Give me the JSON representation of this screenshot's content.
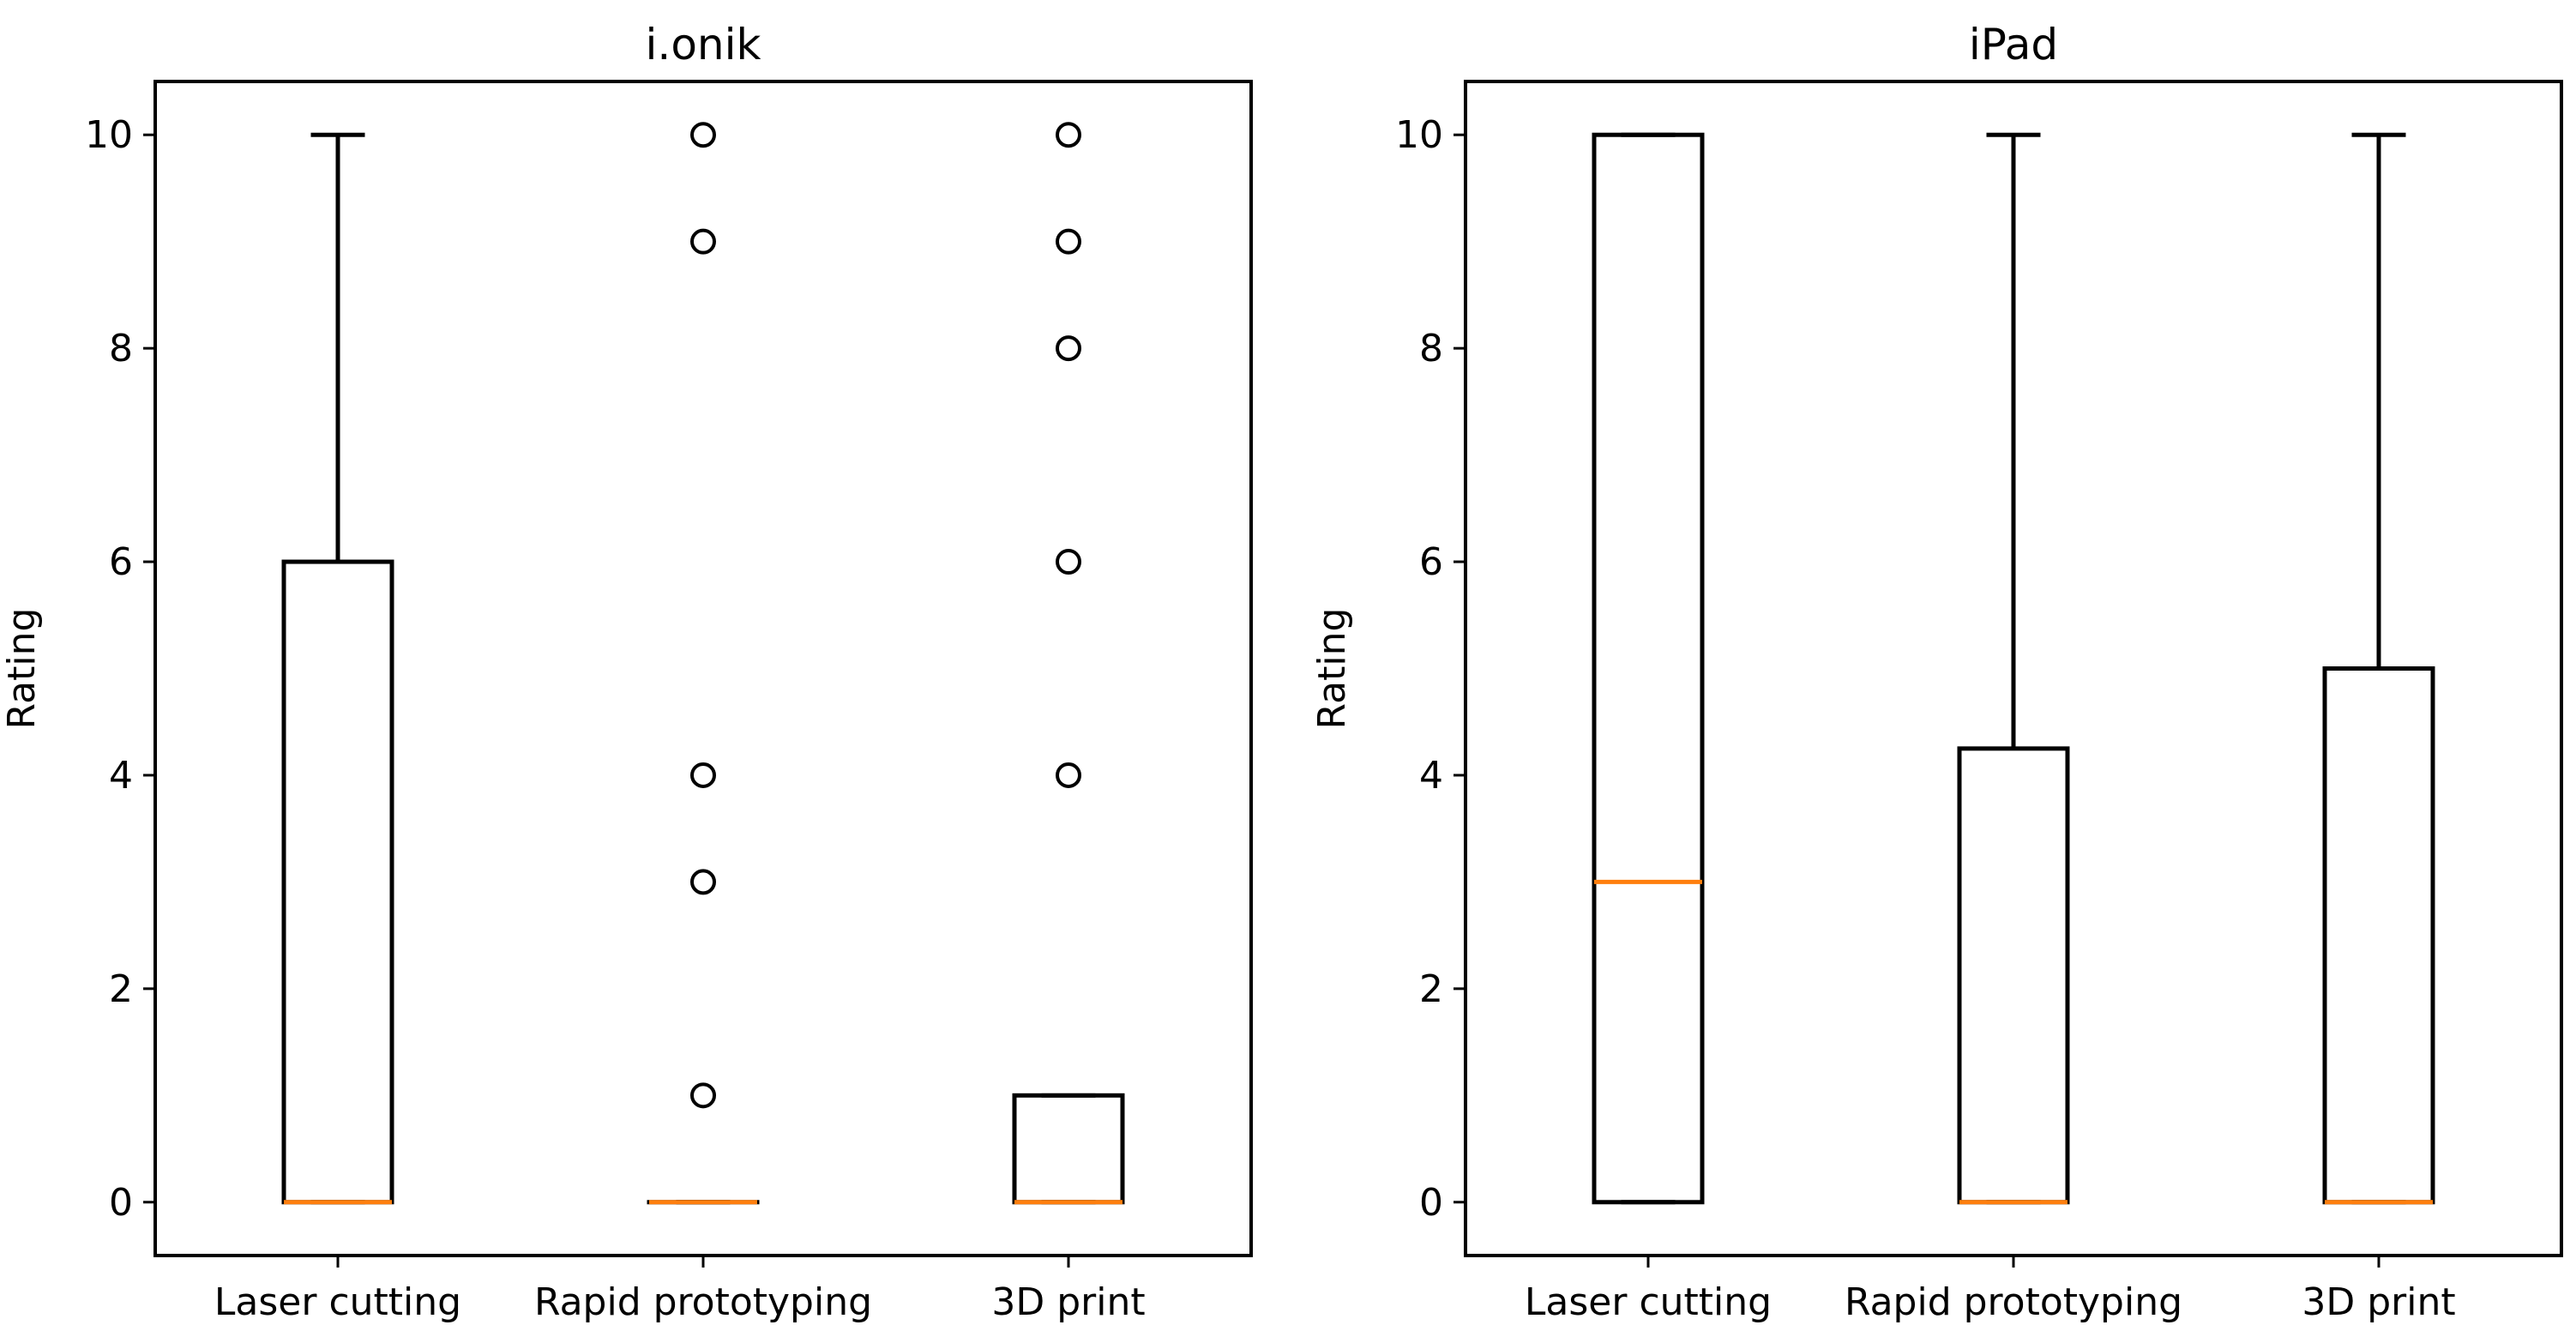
{
  "chart_data": [
    {
      "type": "box",
      "title": "i.onik",
      "xlabel": "",
      "ylabel": "Rating",
      "ylim": [
        -0.5,
        10.5
      ],
      "yticks": [
        0,
        2,
        4,
        6,
        8,
        10
      ],
      "ytick_labels": [
        "0",
        "2",
        "4",
        "6",
        "8",
        "10"
      ],
      "categories": [
        "Laser cutting",
        "Rapid prototyping",
        "3D print"
      ],
      "boxes": [
        {
          "category": "Laser cutting",
          "whisker_low": 0,
          "q1": 0,
          "median": 0,
          "q3": 6,
          "whisker_high": 10,
          "fliers": []
        },
        {
          "category": "Rapid prototyping",
          "whisker_low": 0,
          "q1": 0,
          "median": 0,
          "q3": 0,
          "whisker_high": 0,
          "fliers": [
            10,
            9,
            4,
            3,
            1
          ]
        },
        {
          "category": "3D print",
          "whisker_low": 0,
          "q1": 0,
          "median": 0,
          "q3": 1,
          "whisker_high": 1,
          "fliers": [
            10,
            9,
            8,
            6,
            4
          ]
        }
      ],
      "grid": false
    },
    {
      "type": "box",
      "title": "iPad",
      "xlabel": "",
      "ylabel": "Rating",
      "ylim": [
        -0.5,
        10.5
      ],
      "yticks": [
        0,
        2,
        4,
        6,
        8,
        10
      ],
      "ytick_labels": [
        "0",
        "2",
        "4",
        "6",
        "8",
        "10"
      ],
      "categories": [
        "Laser cutting",
        "Rapid prototyping",
        "3D print"
      ],
      "boxes": [
        {
          "category": "Laser cutting",
          "whisker_low": 0,
          "q1": 0,
          "median": 3,
          "q3": 10,
          "whisker_high": 10,
          "fliers": []
        },
        {
          "category": "Rapid prototyping",
          "whisker_low": 0,
          "q1": 0,
          "median": 0,
          "q3": 4.25,
          "whisker_high": 10,
          "fliers": []
        },
        {
          "category": "3D print",
          "whisker_low": 0,
          "q1": 0,
          "median": 0,
          "q3": 5,
          "whisker_high": 10,
          "fliers": []
        }
      ],
      "grid": false
    }
  ],
  "colors": {
    "median": "#ff7f0e",
    "box_edge": "#000000",
    "background": "#ffffff"
  }
}
